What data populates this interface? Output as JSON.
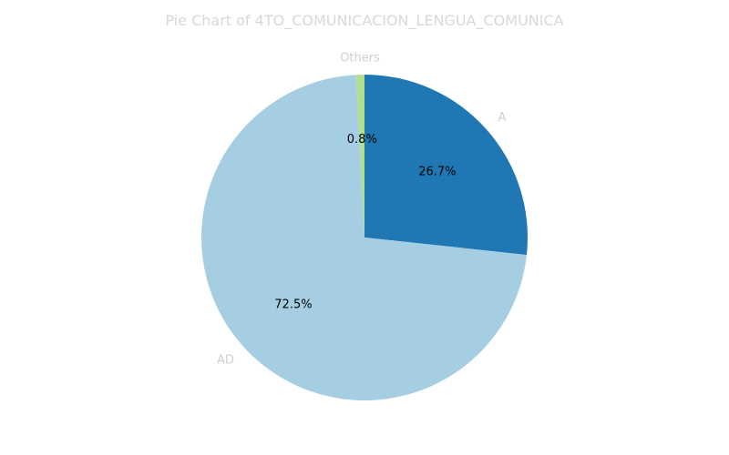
{
  "chart_data": {
    "type": "pie",
    "title": "Pie Chart of 4TO_COMUNICACION_LENGUA_COMUNICA",
    "start_angle_deg": 90,
    "direction": "clockwise",
    "categories": [
      "A",
      "AD",
      "Others"
    ],
    "values": [
      26.7,
      72.5,
      0.8
    ],
    "percent_labels": [
      "26.7%",
      "72.5%",
      "0.8%"
    ],
    "colors": [
      "#1f78b4",
      "#a6cee3",
      "#b2df8a"
    ]
  },
  "colors": {
    "title": "#d8d8d8",
    "category_label": "#d0d0d0",
    "percent_label": "#000000",
    "background": "#ffffff"
  }
}
